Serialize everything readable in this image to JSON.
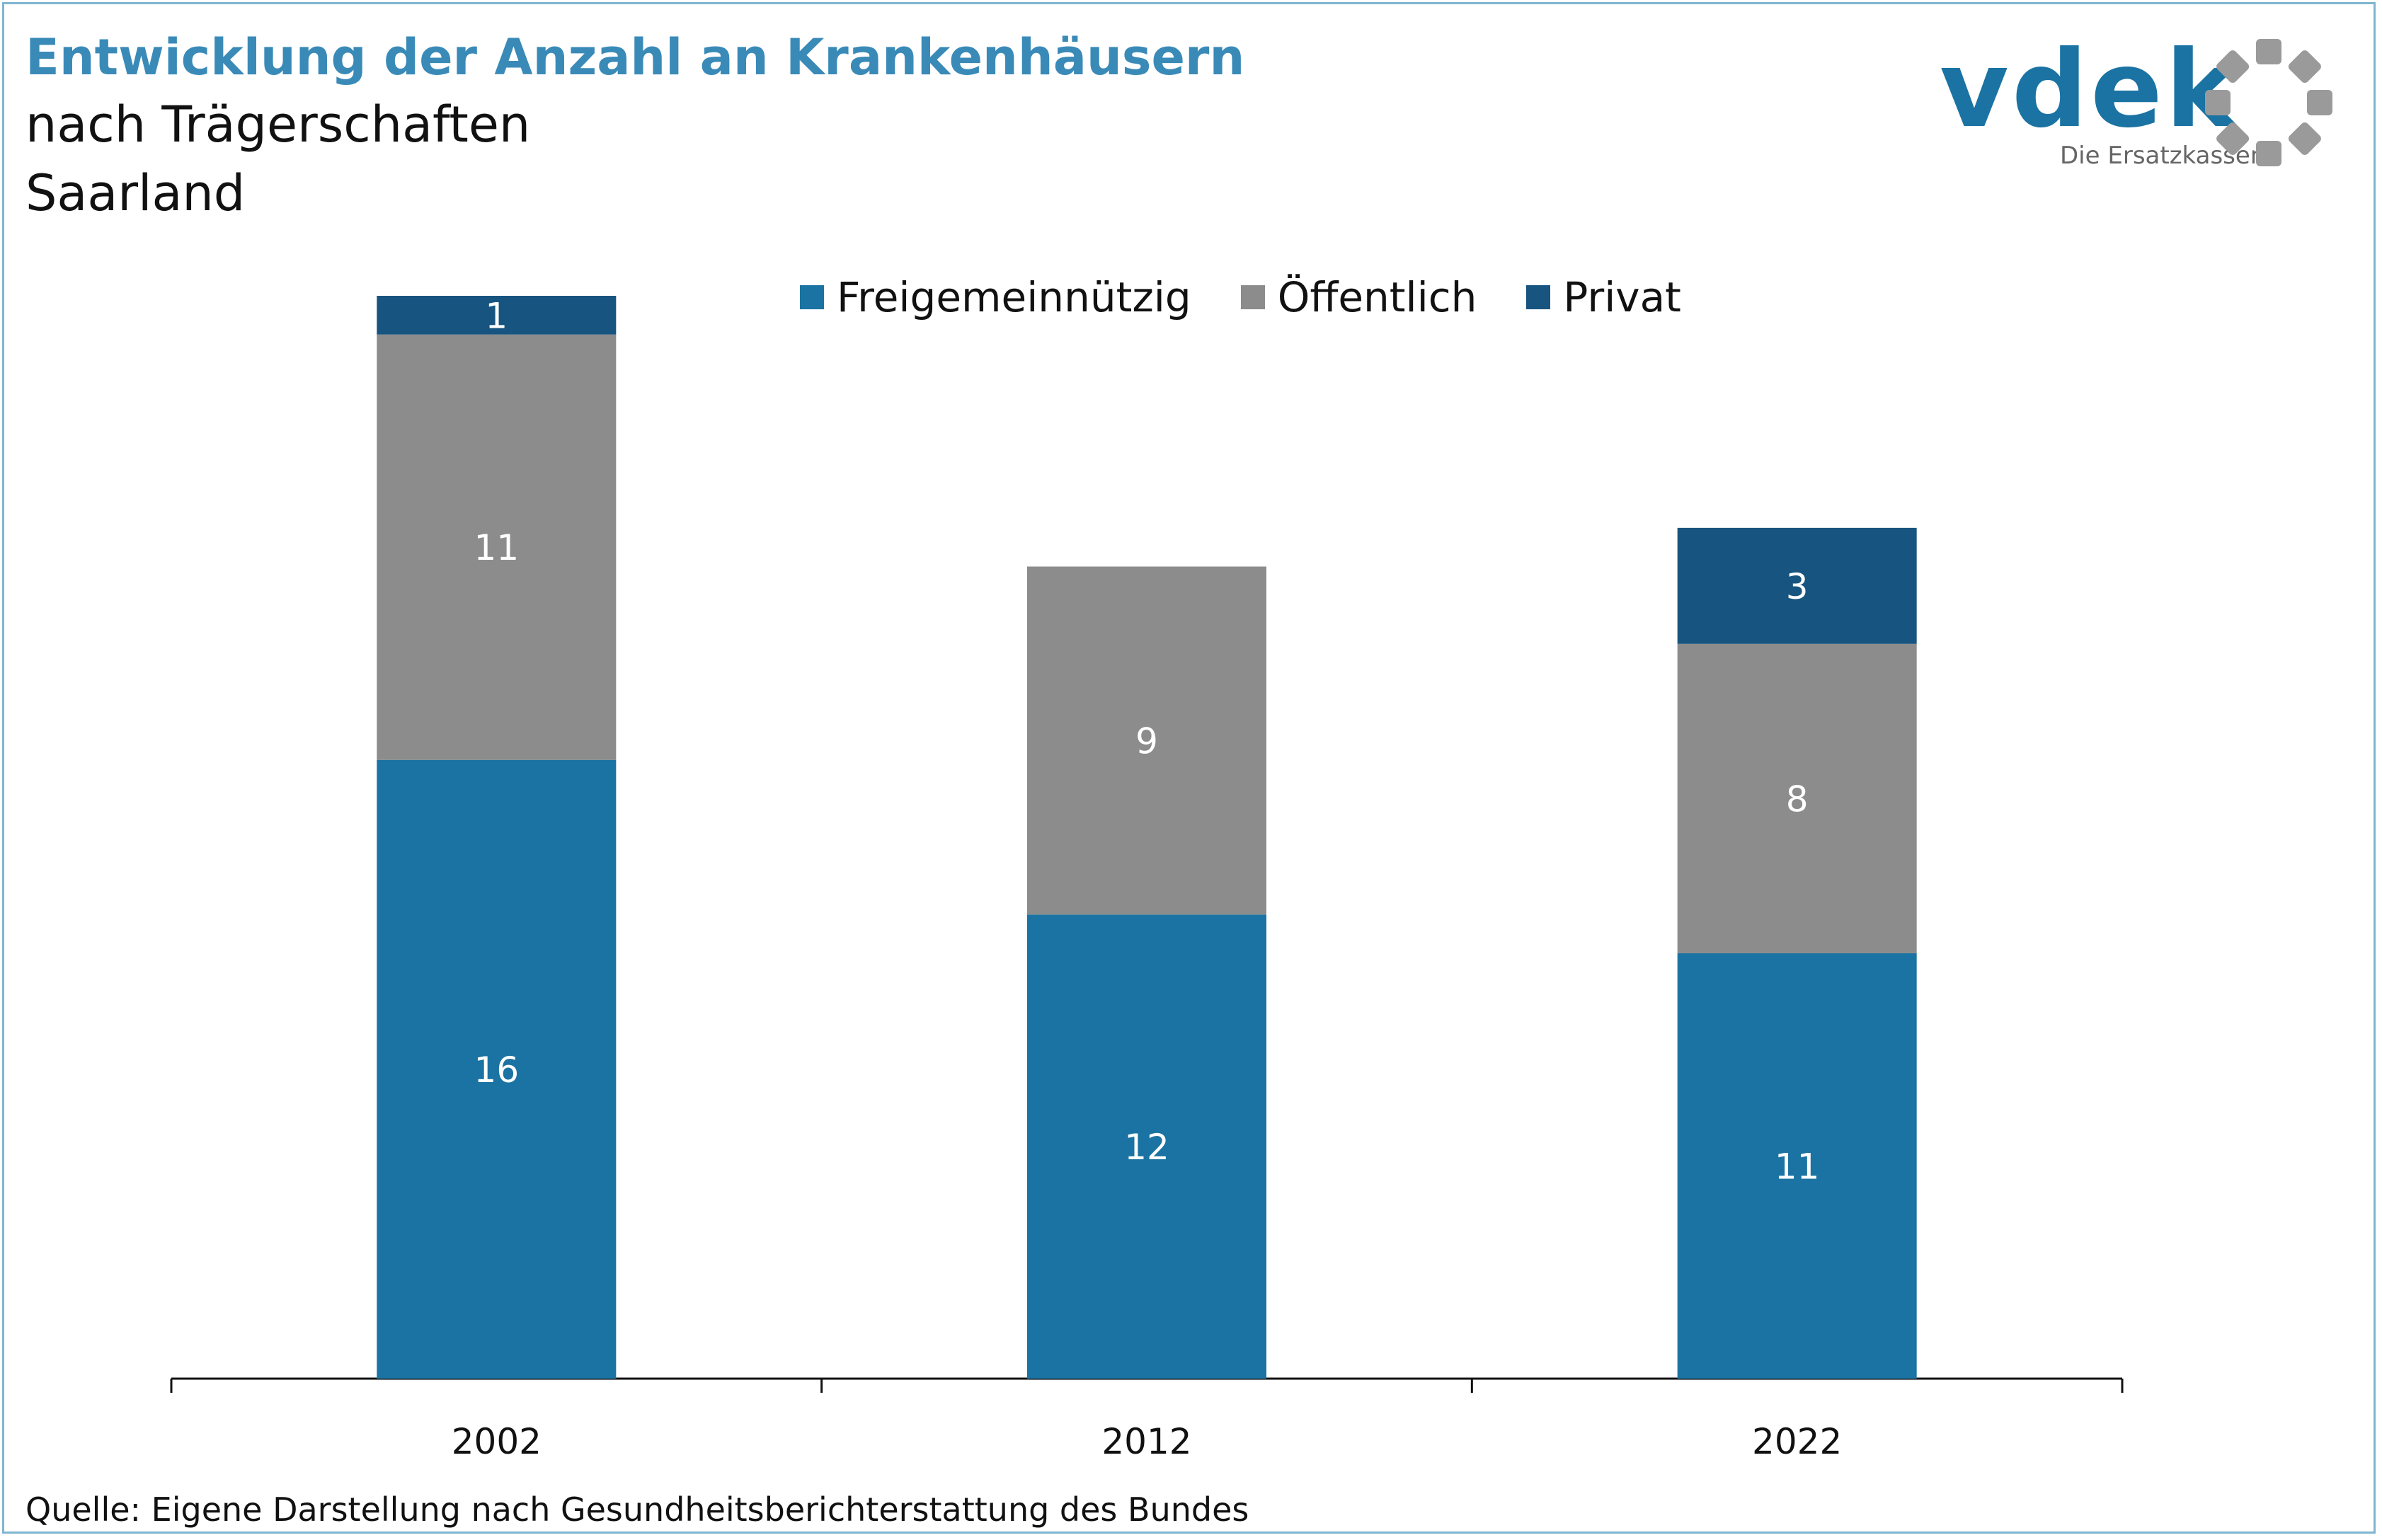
{
  "title": "Entwicklung der Anzahl an Krankenhäusern",
  "subtitle_1": "nach Trägerschaften",
  "subtitle_2": "Saarland",
  "logo": {
    "text": "vdek",
    "tagline": "Die Ersatzkassen"
  },
  "source": "Quelle: Eigene Darstellung nach Gesundheitsberichterstattung des Bundes",
  "colors": {
    "freigemeinnuetzig": "#1a73a2",
    "oeffentlich": "#8c8c8c",
    "privat": "#17547f",
    "title": "#3a8ab8",
    "logo": "#1a73a2"
  },
  "chart_data": {
    "type": "bar",
    "stacked": true,
    "categories": [
      "2002",
      "2012",
      "2022"
    ],
    "series": [
      {
        "name": "Freigemeinnützig",
        "color": "#1a73a2",
        "values": [
          16,
          12,
          11
        ]
      },
      {
        "name": "Öffentlich",
        "color": "#8c8c8c",
        "values": [
          11,
          9,
          8
        ]
      },
      {
        "name": "Privat",
        "color": "#17547f",
        "values": [
          1,
          0,
          3
        ]
      }
    ],
    "ylim": [
      0,
      28
    ],
    "grid": false,
    "legend": "top-center"
  }
}
